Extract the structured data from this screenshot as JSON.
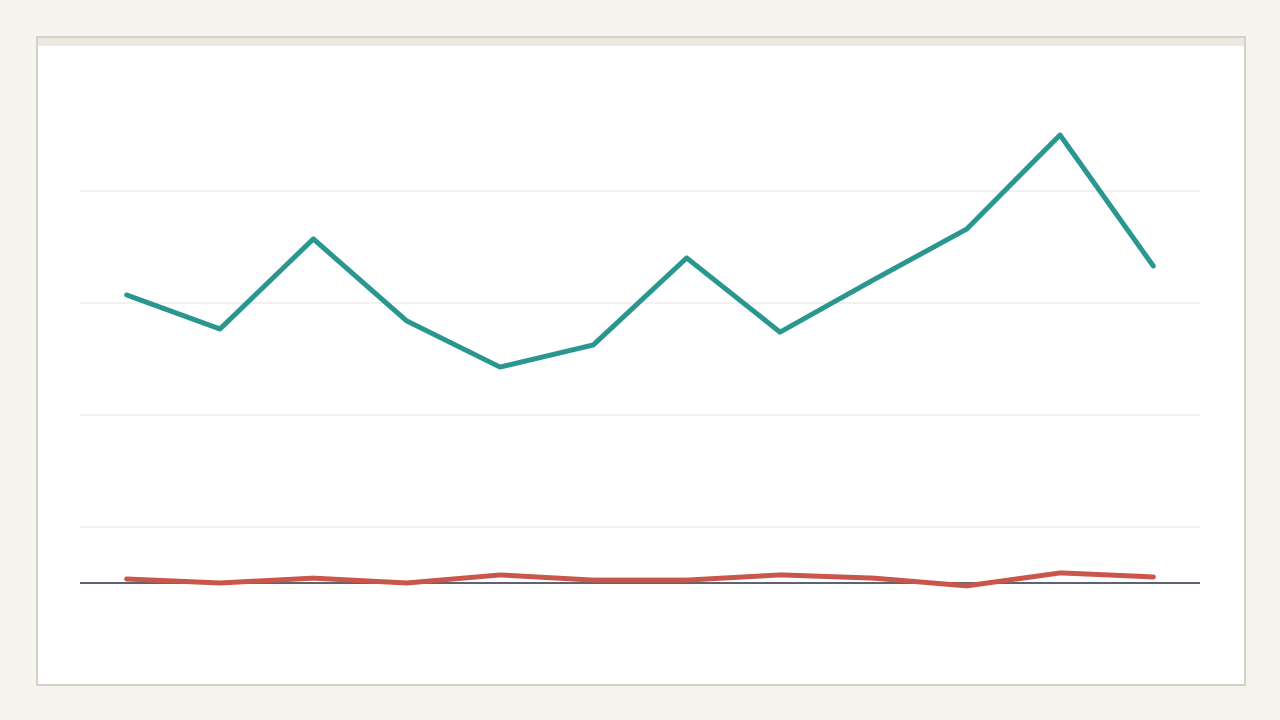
{
  "chart_data": {
    "type": "line",
    "categories": [
      null,
      null,
      null,
      null,
      null,
      null,
      null,
      null,
      null,
      null,
      null,
      null
    ],
    "series": [
      {
        "color": "#2a9690",
        "values": [
          128.6,
          113.4,
          153.6,
          117,
          96.4,
          106.3,
          145.1,
          112,
          135.3,
          158,
          200,
          141.5
        ]
      },
      {
        "color": "#c8564a",
        "values": [
          1.8,
          0,
          2.2,
          0,
          3.6,
          1.3,
          1.3,
          3.6,
          2.2,
          -1.3,
          4.5,
          2.7
        ]
      }
    ],
    "ylim": [
      -25,
      210
    ],
    "yticks": [
      25,
      75,
      125,
      175
    ],
    "grid": true
  }
}
